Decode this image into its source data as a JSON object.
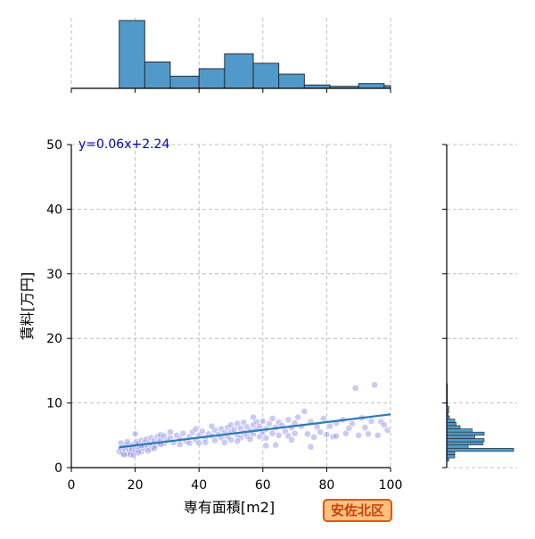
{
  "chart_data": {
    "type": "scatter",
    "xlabel": "専有面積[m2]",
    "ylabel": "賃料[万円]",
    "xlim": [
      0,
      100
    ],
    "ylim": [
      0,
      50
    ],
    "x_ticks": [
      "0",
      "20",
      "40",
      "60",
      "80",
      "100"
    ],
    "y_ticks": [
      "0",
      "10",
      "20",
      "30",
      "40",
      "50"
    ],
    "grid": true,
    "regression": {
      "label": "y=0.06x+2.24",
      "slope": 0.06,
      "intercept": 2.24,
      "x_range": [
        15,
        100
      ]
    },
    "marginal_x_histogram": {
      "bin_edges": [
        0,
        8,
        15,
        23,
        31,
        40,
        48,
        57,
        65,
        73,
        81,
        90,
        98,
        100
      ],
      "relative_counts": [
        0,
        0,
        1.0,
        0.39,
        0.18,
        0.29,
        0.51,
        0.37,
        0.21,
        0.05,
        0.03,
        0.07,
        0.04
      ]
    },
    "marginal_y_histogram": {
      "bin_edges": [
        1,
        1.5,
        2,
        2.5,
        3,
        3.5,
        4,
        4.5,
        5,
        5.5,
        6,
        6.5,
        7,
        7.5,
        8,
        8.5,
        9,
        9.5,
        10,
        10.5,
        11,
        11.5,
        12,
        12.5,
        13
      ],
      "relative_counts": [
        0.03,
        0.12,
        0.12,
        1.0,
        0.32,
        0.54,
        0.56,
        0.42,
        0.56,
        0.38,
        0.2,
        0.14,
        0.12,
        0.04,
        0.02,
        0.03,
        0.03,
        0.01,
        0.01,
        0.01,
        0.01,
        0.01,
        0.01,
        0.01
      ]
    },
    "points": [
      [
        15,
        2.5
      ],
      [
        15.5,
        3.0
      ],
      [
        16,
        2.2
      ],
      [
        16.5,
        3.1
      ],
      [
        17,
        2.7
      ],
      [
        17,
        3.4
      ],
      [
        17.5,
        2.1
      ],
      [
        18,
        2.9
      ],
      [
        18,
        3.5
      ],
      [
        18.5,
        2.4
      ],
      [
        19,
        3.2
      ],
      [
        19,
        2.8
      ],
      [
        19.5,
        3.6
      ],
      [
        20,
        2.6
      ],
      [
        20,
        3.3
      ],
      [
        20.5,
        4.0
      ],
      [
        21,
        2.9
      ],
      [
        21,
        3.7
      ],
      [
        21.5,
        3.1
      ],
      [
        22,
        2.5
      ],
      [
        22,
        4.2
      ],
      [
        22.5,
        3.5
      ],
      [
        23,
        3.0
      ],
      [
        23,
        3.9
      ],
      [
        23.5,
        4.4
      ],
      [
        24,
        3.3
      ],
      [
        24.5,
        3.8
      ],
      [
        25,
        2.9
      ],
      [
        25,
        4.6
      ],
      [
        25.5,
        3.6
      ],
      [
        26,
        4.1
      ],
      [
        26.5,
        3.4
      ],
      [
        27,
        4.8
      ],
      [
        27.5,
        3.9
      ],
      [
        28,
        4.3
      ],
      [
        28,
        5.1
      ],
      [
        29,
        3.7
      ],
      [
        20,
        5.2
      ],
      [
        17.5,
        4.0
      ],
      [
        15.5,
        3.8
      ],
      [
        18.5,
        2.0
      ],
      [
        21,
        2.3
      ],
      [
        19.5,
        1.9
      ],
      [
        16.5,
        2.0
      ],
      [
        24,
        2.6
      ],
      [
        26,
        3.0
      ],
      [
        22,
        3.4
      ],
      [
        28,
        3.6
      ],
      [
        29,
        4.9
      ],
      [
        30,
        4.2
      ],
      [
        31,
        4.6
      ],
      [
        32,
        3.9
      ],
      [
        33,
        5.0
      ],
      [
        34,
        4.4
      ],
      [
        35,
        5.3
      ],
      [
        36,
        4.1
      ],
      [
        37,
        4.8
      ],
      [
        38,
        5.5
      ],
      [
        39,
        4.3
      ],
      [
        40,
        5.0
      ],
      [
        40,
        3.8
      ],
      [
        41,
        5.6
      ],
      [
        42,
        4.6
      ],
      [
        42,
        3.9
      ],
      [
        43,
        5.2
      ],
      [
        44,
        4.9
      ],
      [
        45,
        5.8
      ],
      [
        45,
        4.2
      ],
      [
        46,
        5.1
      ],
      [
        47,
        6.0
      ],
      [
        47,
        4.6
      ],
      [
        48,
        5.4
      ],
      [
        48,
        3.9
      ],
      [
        49,
        6.2
      ],
      [
        49,
        4.8
      ],
      [
        50,
        5.5
      ],
      [
        50,
        6.6
      ],
      [
        50,
        4.3
      ],
      [
        51,
        5.9
      ],
      [
        52,
        5.0
      ],
      [
        52,
        6.8
      ],
      [
        53,
        4.6
      ],
      [
        53,
        6.1
      ],
      [
        54,
        5.4
      ],
      [
        54,
        7.0
      ],
      [
        55,
        4.9
      ],
      [
        55,
        6.3
      ],
      [
        56,
        5.7
      ],
      [
        56,
        4.4
      ],
      [
        57,
        6.6
      ],
      [
        57,
        5.2
      ],
      [
        58,
        7.1
      ],
      [
        58,
        5.9
      ],
      [
        59,
        4.8
      ],
      [
        59,
        6.4
      ],
      [
        60,
        5.5
      ],
      [
        60,
        7.2
      ],
      [
        61,
        6.0
      ],
      [
        61,
        4.6
      ],
      [
        62,
        6.8
      ],
      [
        63,
        5.3
      ],
      [
        63,
        7.6
      ],
      [
        64,
        6.2
      ],
      [
        65,
        5.0
      ],
      [
        65,
        7.0
      ],
      [
        66,
        6.5
      ],
      [
        67,
        5.6
      ],
      [
        68,
        7.4
      ],
      [
        68,
        4.9
      ],
      [
        69,
        6.2
      ],
      [
        70,
        6.9
      ],
      [
        70,
        5.3
      ],
      [
        71,
        7.8
      ],
      [
        72,
        6.4
      ],
      [
        73,
        8.7
      ],
      [
        74,
        5.2
      ],
      [
        75,
        7.1
      ],
      [
        76,
        4.7
      ],
      [
        77,
        6.3
      ],
      [
        78,
        5.5
      ],
      [
        79,
        7.6
      ],
      [
        80,
        5.1
      ],
      [
        81,
        6.4
      ],
      [
        82,
        4.8
      ],
      [
        83,
        6.9
      ],
      [
        85,
        7.4
      ],
      [
        86,
        5.3
      ],
      [
        87,
        6.1
      ],
      [
        89,
        12.3
      ],
      [
        90,
        5.0
      ],
      [
        91,
        7.7
      ],
      [
        92,
        6.2
      ],
      [
        93,
        5.2
      ],
      [
        95,
        12.8
      ],
      [
        96,
        5.0
      ],
      [
        97,
        7.1
      ],
      [
        99,
        5.8
      ],
      [
        64,
        3.5
      ],
      [
        34,
        3.6
      ],
      [
        52,
        4.1
      ],
      [
        44,
        6.4
      ],
      [
        39,
        6.0
      ],
      [
        57,
        7.8
      ],
      [
        61,
        3.4
      ],
      [
        75,
        3.2
      ],
      [
        69,
        4.3
      ],
      [
        83,
        4.9
      ],
      [
        88,
        6.8
      ],
      [
        94,
        7.2
      ],
      [
        98,
        6.6
      ],
      [
        31,
        5.5
      ],
      [
        37,
        3.8
      ]
    ]
  },
  "district_label": "安佐北区"
}
